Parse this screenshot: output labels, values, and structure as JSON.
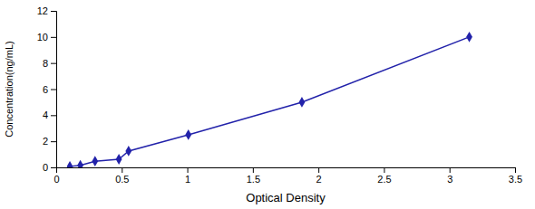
{
  "chart_data": {
    "type": "line",
    "x": [
      0.104,
      0.184,
      0.296,
      0.478,
      0.552,
      1.008,
      1.874,
      3.151
    ],
    "values": [
      0.078,
      0.156,
      0.469,
      0.625,
      1.25,
      2.5,
      5.0,
      10.0
    ],
    "color": "#2222aa",
    "marker": "diamond",
    "xlabel": "Optical Density",
    "ylabel": "Concentration(ng/mL)",
    "xlim": [
      0,
      3.5
    ],
    "ylim": [
      0,
      12
    ],
    "xticks": [
      0,
      0.5,
      1,
      1.5,
      2,
      2.5,
      3,
      3.5
    ],
    "yticks": [
      0,
      2,
      4,
      6,
      8,
      10,
      12
    ],
    "grid": false
  }
}
